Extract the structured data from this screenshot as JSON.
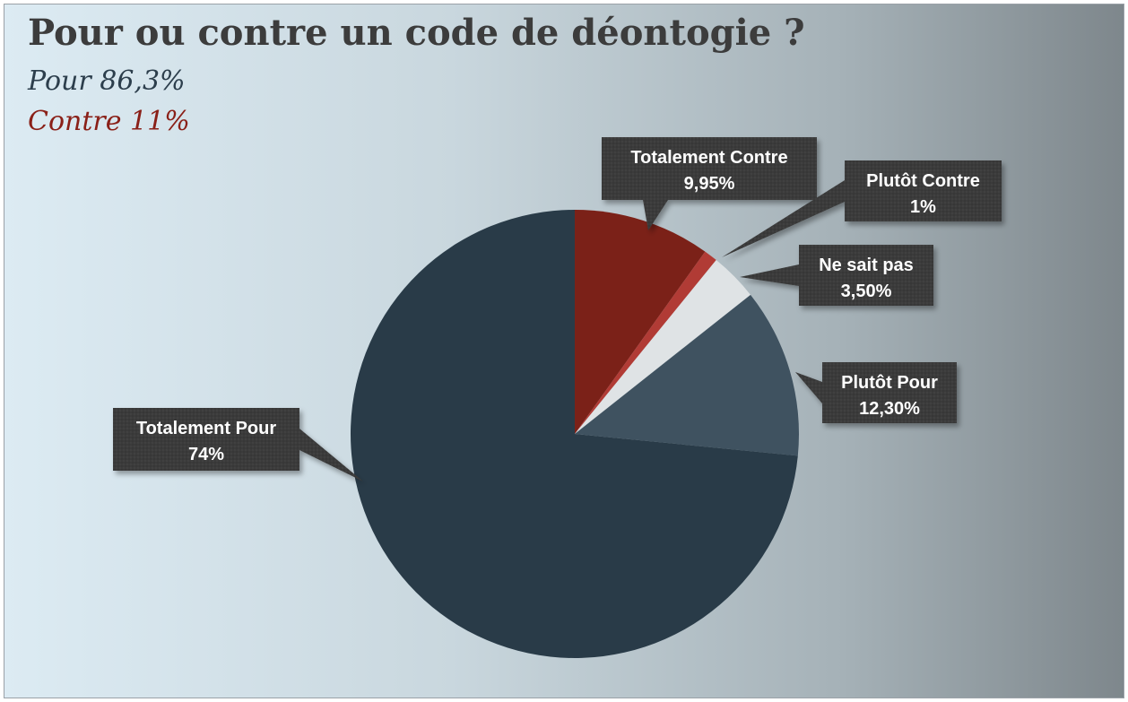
{
  "chart_data": {
    "type": "pie",
    "title": "Pour ou contre un code de déontogie ?",
    "subtitles": [
      {
        "text": "Pour 86,3%",
        "color": "#2c3e4c"
      },
      {
        "text": "Contre 11%",
        "color": "#8a2018"
      }
    ],
    "slices": [
      {
        "name": "Totalement Contre",
        "value": 9.95,
        "value_label": "9,95%",
        "color": "#7b2118"
      },
      {
        "name": "Plutôt Contre",
        "value": 1,
        "value_label": "1%",
        "color": "#b13b35"
      },
      {
        "name": "Ne sait pas",
        "value": 3.5,
        "value_label": "3,50%",
        "color": "#dfe3e5"
      },
      {
        "name": "Plutôt Pour",
        "value": 12.3,
        "value_label": "12,30%",
        "color": "#3f5260"
      },
      {
        "name": "Totalement Pour",
        "value": 74,
        "value_label": "74%",
        "color": "#293b48"
      }
    ],
    "start_angle": "12 o'clock",
    "direction": "clockwise",
    "legend": "none"
  }
}
